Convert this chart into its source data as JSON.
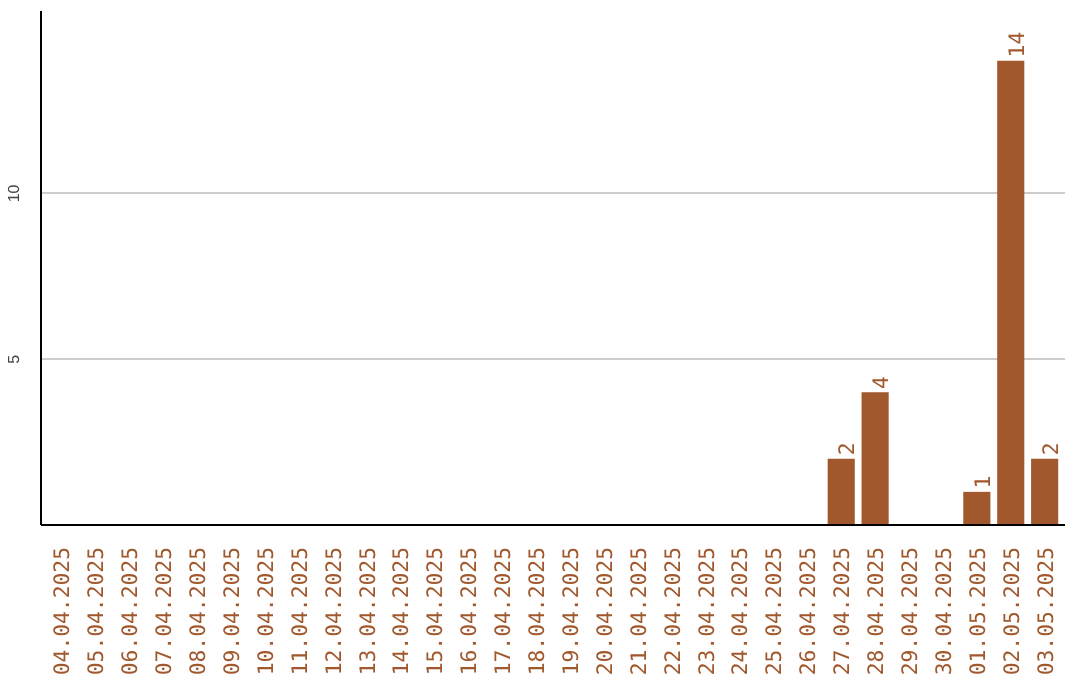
{
  "chart_data": {
    "type": "bar",
    "categories": [
      "04.04.2025",
      "05.04.2025",
      "06.04.2025",
      "07.04.2025",
      "08.04.2025",
      "09.04.2025",
      "10.04.2025",
      "11.04.2025",
      "12.04.2025",
      "13.04.2025",
      "14.04.2025",
      "15.04.2025",
      "16.04.2025",
      "17.04.2025",
      "18.04.2025",
      "19.04.2025",
      "20.04.2025",
      "21.04.2025",
      "22.04.2025",
      "23.04.2025",
      "24.04.2025",
      "25.04.2025",
      "26.04.2025",
      "27.04.2025",
      "28.04.2025",
      "29.04.2025",
      "30.04.2025",
      "01.05.2025",
      "02.05.2025",
      "03.05.2025"
    ],
    "values": [
      0,
      0,
      0,
      0,
      0,
      0,
      0,
      0,
      0,
      0,
      0,
      0,
      0,
      0,
      0,
      0,
      0,
      0,
      0,
      0,
      0,
      0,
      0,
      2,
      4,
      0,
      0,
      1,
      14,
      2
    ],
    "value_labels": [
      null,
      null,
      null,
      null,
      null,
      null,
      null,
      null,
      null,
      null,
      null,
      null,
      null,
      null,
      null,
      null,
      null,
      null,
      null,
      null,
      null,
      null,
      null,
      "2",
      "4",
      null,
      null,
      "1",
      "14",
      "2"
    ],
    "color": "#a0582c",
    "ylim": [
      0,
      15.5
    ],
    "yticks": [
      5,
      10
    ],
    "grid": "y"
  }
}
